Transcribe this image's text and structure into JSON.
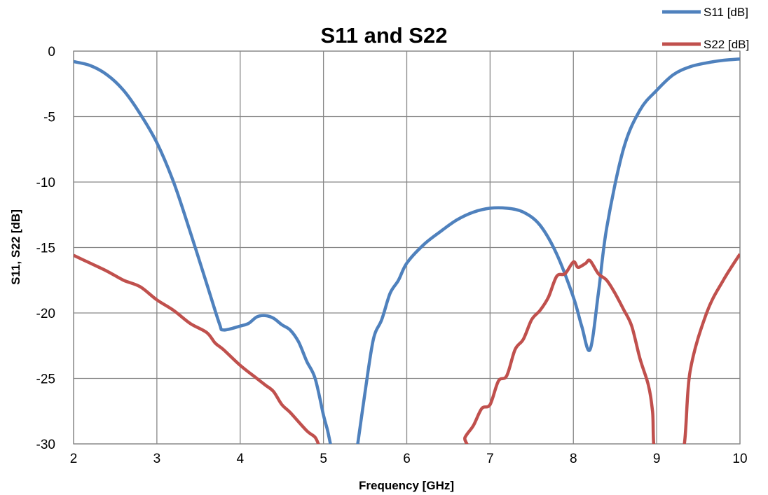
{
  "chart_data": {
    "type": "line",
    "title": "S11 and S22",
    "xlabel": "Frequency [GHz]",
    "ylabel": "S11, S22 [dB]",
    "xlim": [
      2,
      10
    ],
    "ylim": [
      -30,
      0
    ],
    "xticks": [
      "2",
      "3",
      "4",
      "5",
      "6",
      "7",
      "8",
      "9",
      "10"
    ],
    "yticks": [
      "0",
      "-5",
      "-10",
      "-15",
      "-20",
      "-25",
      "-30"
    ],
    "grid": true,
    "legend_position": "top-right",
    "series": [
      {
        "name": "S11 [dB]",
        "color": "#4f81bd",
        "x": [
          2.0,
          2.2,
          2.4,
          2.6,
          2.8,
          3.0,
          3.2,
          3.4,
          3.6,
          3.75,
          3.8,
          4.0,
          4.1,
          4.2,
          4.3,
          4.4,
          4.5,
          4.6,
          4.7,
          4.8,
          4.9,
          5.0,
          5.05,
          5.1,
          5.15,
          5.35,
          5.4,
          5.5,
          5.6,
          5.7,
          5.8,
          5.9,
          6.0,
          6.2,
          6.4,
          6.6,
          6.8,
          7.0,
          7.2,
          7.4,
          7.6,
          7.8,
          8.0,
          8.1,
          8.2,
          8.3,
          8.4,
          8.6,
          8.8,
          9.0,
          9.2,
          9.4,
          9.6,
          9.8,
          10.0
        ],
        "y": [
          -0.8,
          -1.1,
          -1.8,
          -3.0,
          -4.8,
          -7.0,
          -10.0,
          -13.8,
          -17.8,
          -20.8,
          -21.3,
          -21.0,
          -20.8,
          -20.3,
          -20.2,
          -20.4,
          -20.9,
          -21.3,
          -22.2,
          -23.7,
          -25.0,
          -27.8,
          -29.0,
          -30.5,
          -32.0,
          -32.0,
          -30.5,
          -26.0,
          -22.0,
          -20.5,
          -18.5,
          -17.5,
          -16.2,
          -14.8,
          -13.8,
          -12.9,
          -12.3,
          -12.0,
          -12.0,
          -12.3,
          -13.3,
          -15.5,
          -18.8,
          -21.0,
          -22.8,
          -18.5,
          -13.5,
          -7.5,
          -4.5,
          -3.0,
          -1.8,
          -1.2,
          -0.9,
          -0.7,
          -0.6
        ]
      },
      {
        "name": "S22 [dB]",
        "color": "#c0504d",
        "x": [
          2.0,
          2.2,
          2.4,
          2.6,
          2.8,
          3.0,
          3.2,
          3.4,
          3.6,
          3.7,
          3.8,
          4.0,
          4.2,
          4.3,
          4.4,
          4.5,
          4.6,
          4.8,
          4.9,
          4.95,
          5.0,
          6.6,
          6.7,
          6.8,
          6.9,
          7.0,
          7.1,
          7.2,
          7.3,
          7.4,
          7.5,
          7.6,
          7.7,
          7.8,
          7.9,
          8.0,
          8.05,
          8.1,
          8.15,
          8.2,
          8.3,
          8.4,
          8.5,
          8.6,
          8.7,
          8.8,
          8.9,
          8.95,
          9.0,
          9.3,
          9.4,
          9.6,
          9.8,
          10.0
        ],
        "y": [
          -15.6,
          -16.2,
          -16.8,
          -17.5,
          -18.0,
          -19.0,
          -19.8,
          -20.8,
          -21.5,
          -22.3,
          -22.8,
          -24.0,
          -25.0,
          -25.5,
          -26.0,
          -27.0,
          -27.6,
          -29.0,
          -29.5,
          -30.2,
          -31.0,
          -31.0,
          -29.5,
          -28.6,
          -27.3,
          -27.0,
          -25.2,
          -24.8,
          -22.8,
          -22.0,
          -20.5,
          -19.8,
          -18.8,
          -17.2,
          -17.0,
          -16.1,
          -16.5,
          -16.4,
          -16.2,
          -16.0,
          -17.0,
          -17.5,
          -18.5,
          -19.7,
          -21.0,
          -23.5,
          -25.5,
          -27.5,
          -31.0,
          -31.0,
          -24.5,
          -20.0,
          -17.5,
          -15.5
        ]
      }
    ]
  }
}
